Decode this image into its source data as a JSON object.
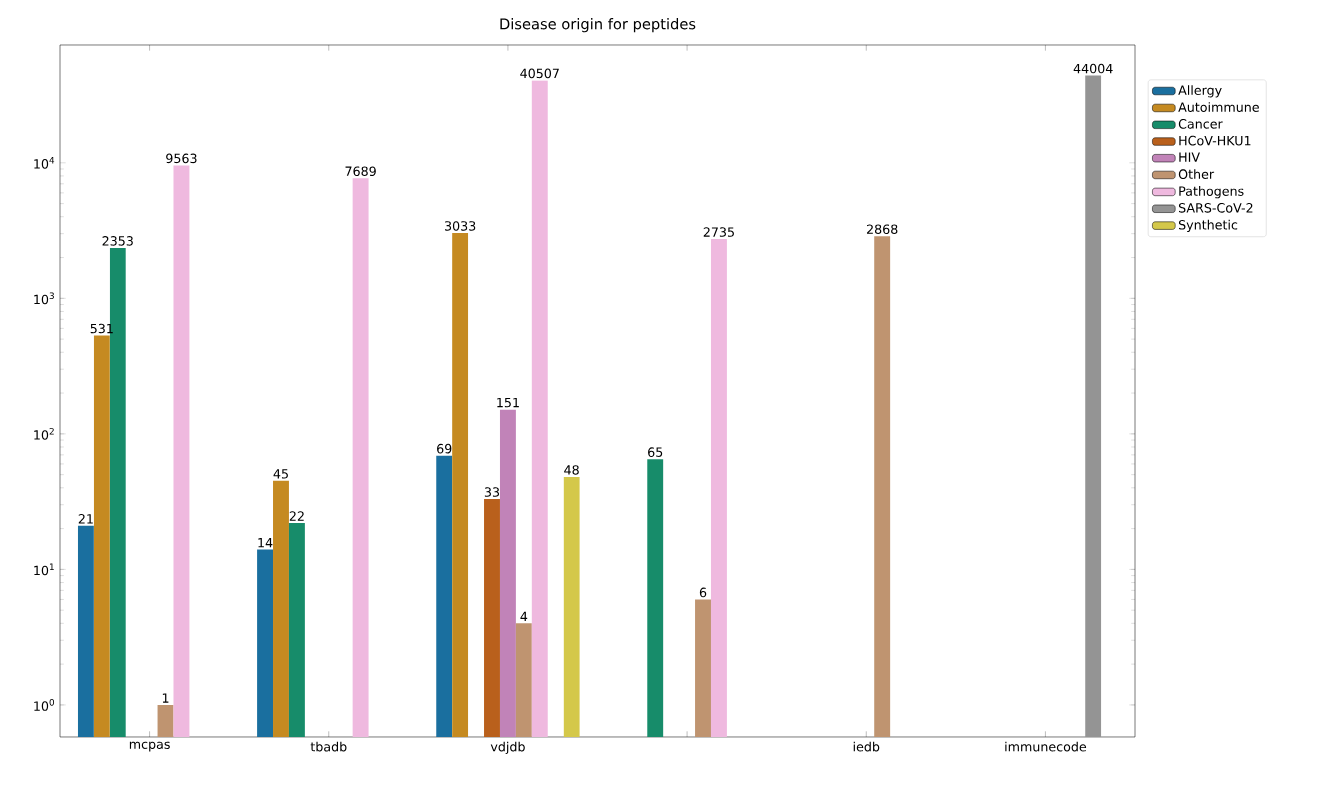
{
  "chart_data": {
    "type": "bar",
    "title": "Disease origin for peptides",
    "categories": [
      "mcpas",
      "tbadb",
      "vdjdb",
      null,
      "iedb",
      "immunecode"
    ],
    "series": [
      {
        "name": "Allergy",
        "color": "#1a6f9f",
        "values": [
          21,
          14,
          69,
          null,
          null,
          null
        ]
      },
      {
        "name": "Autoimmune",
        "color": "#c58a21",
        "values": [
          531,
          45,
          3033,
          null,
          null,
          null
        ]
      },
      {
        "name": "Cancer",
        "color": "#178c6a",
        "values": [
          2353,
          22,
          null,
          65,
          null,
          null
        ]
      },
      {
        "name": "HCoV-HKU1",
        "color": "#b9601c",
        "values": [
          null,
          null,
          33,
          null,
          null,
          null
        ]
      },
      {
        "name": "HIV",
        "color": "#c183b8",
        "values": [
          null,
          null,
          151,
          null,
          null,
          null
        ]
      },
      {
        "name": "Other",
        "color": "#bf9470",
        "values": [
          1,
          null,
          4,
          6,
          2868,
          null
        ]
      },
      {
        "name": "Pathogens",
        "color": "#efb9df",
        "values": [
          9563,
          7689,
          40507,
          2735,
          null,
          null
        ]
      },
      {
        "name": "SARS-CoV-2",
        "color": "#949494",
        "values": [
          null,
          null,
          null,
          null,
          null,
          44004
        ]
      },
      {
        "name": "Synthetic",
        "color": "#d4c84a",
        "values": [
          null,
          null,
          48,
          null,
          null,
          null
        ]
      }
    ],
    "log": "y",
    "ylim": [
      0.58,
      74000
    ],
    "yticks": [
      {
        "value": 1,
        "label": "10$^{0}$"
      },
      {
        "value": 10,
        "label": "10$^{1}$"
      },
      {
        "value": 100,
        "label": "10$^{2}$"
      },
      {
        "value": 1000,
        "label": "10$^{3}$"
      },
      {
        "value": 10000,
        "label": "10$^{4}$"
      }
    ],
    "data_labels": true,
    "legend": "top right",
    "grid": false
  }
}
